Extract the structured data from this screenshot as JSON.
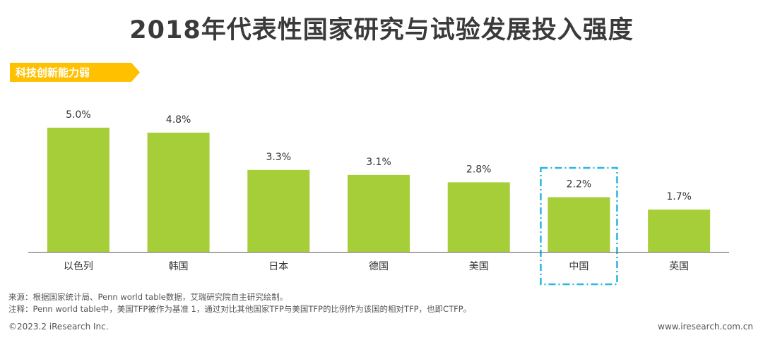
{
  "title": "2018年代表性国家研究与试验发展投入强度",
  "tag": {
    "label": "科技创新能力弱",
    "color": "#FFC000"
  },
  "chart_data": {
    "type": "bar",
    "categories": [
      "以色列",
      "韩国",
      "日本",
      "德国",
      "美国",
      "中国",
      "英国"
    ],
    "values": [
      5.0,
      4.8,
      3.3,
      3.1,
      2.8,
      2.2,
      1.7
    ],
    "value_labels": [
      "5.0%",
      "4.8%",
      "3.3%",
      "3.1%",
      "2.8%",
      "2.2%",
      "1.7%"
    ],
    "ylim": [
      0,
      5.0
    ],
    "bar_color": "#A6CE39",
    "highlight": {
      "category": "中国",
      "style": "dash-dot box",
      "color": "#29B6E0"
    },
    "grid": false
  },
  "footnotes": {
    "source": "来源：根据国家统计局、Penn world table数据，艾瑞研究院自主研究绘制。",
    "note": "注释：Penn world table中，美国TFP被作为基准 1，通过对比其他国家TFP与美国TFP的比例作为该国的相对TFP，也即CTFP。"
  },
  "copyright": "©2023.2 iResearch Inc.",
  "website": "www.iresearch.com.cn"
}
